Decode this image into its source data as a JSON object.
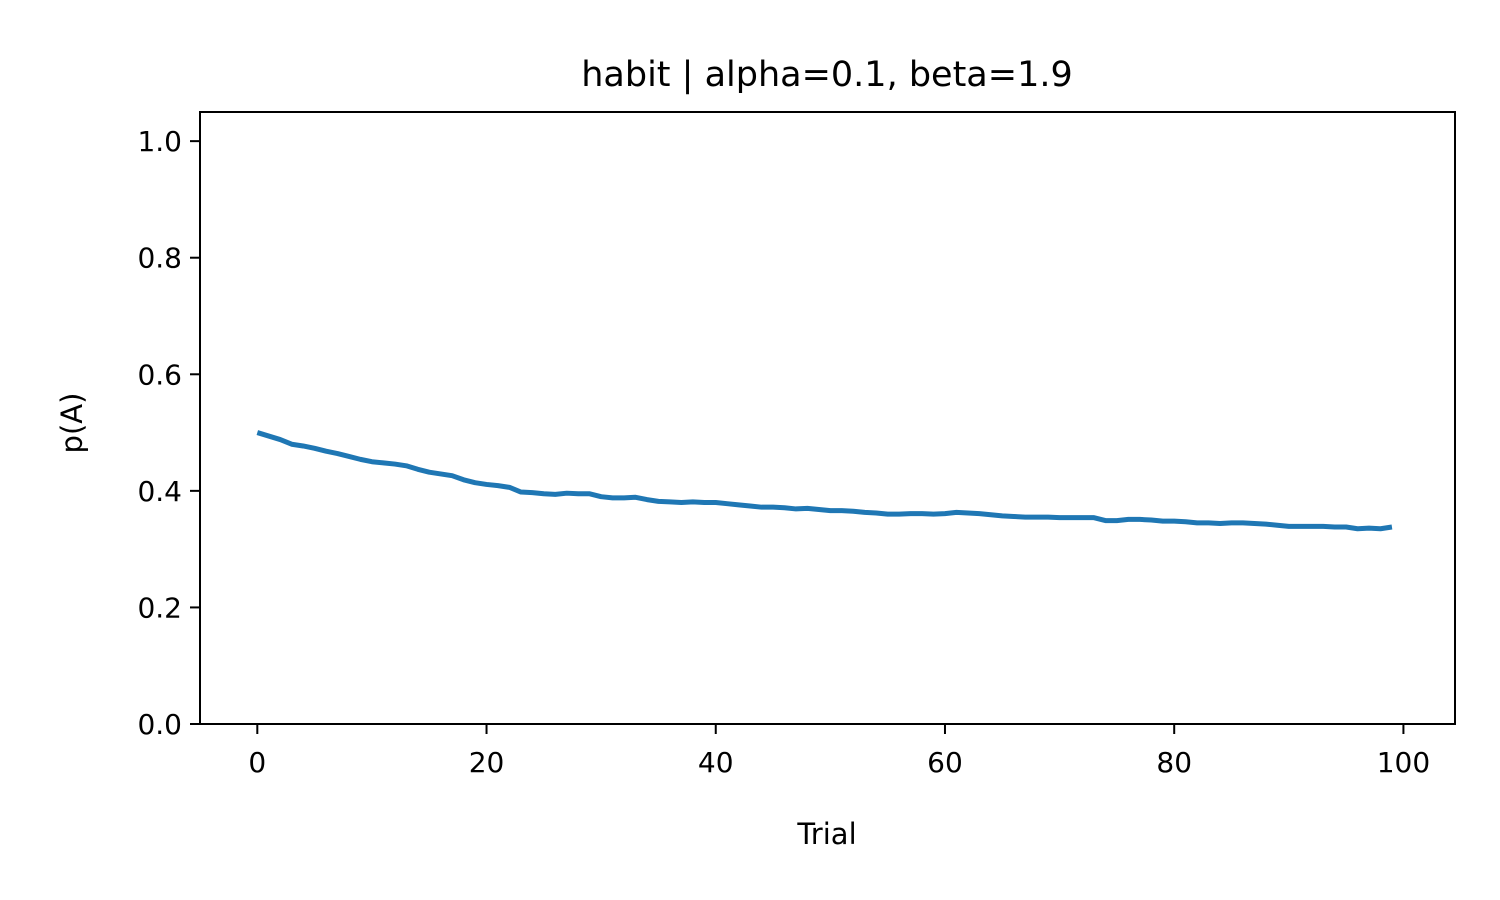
{
  "chart_data": {
    "type": "line",
    "title": "habit | alpha=0.1, beta=1.9",
    "xlabel": "Trial",
    "ylabel": "p(A)",
    "xlim": [
      -5,
      104.5
    ],
    "ylim": [
      0,
      1.05
    ],
    "xticks": [
      0,
      20,
      40,
      60,
      80,
      100
    ],
    "yticks": [
      0.0,
      0.2,
      0.4,
      0.6,
      0.8,
      1.0
    ],
    "xtick_labels": [
      "0",
      "20",
      "40",
      "60",
      "80",
      "100"
    ],
    "ytick_labels": [
      "0.0",
      "0.2",
      "0.4",
      "0.6",
      "0.8",
      "1.0"
    ],
    "grid": false,
    "series": [
      {
        "color": "#1f77b4",
        "x": [
          0,
          1,
          2,
          3,
          4,
          5,
          6,
          7,
          8,
          9,
          10,
          11,
          12,
          13,
          14,
          15,
          16,
          17,
          18,
          19,
          20,
          21,
          22,
          23,
          24,
          25,
          26,
          27,
          28,
          29,
          30,
          31,
          32,
          33,
          34,
          35,
          36,
          37,
          38,
          39,
          40,
          41,
          42,
          43,
          44,
          45,
          46,
          47,
          48,
          49,
          50,
          51,
          52,
          53,
          54,
          55,
          56,
          57,
          58,
          59,
          60,
          61,
          62,
          63,
          64,
          65,
          66,
          67,
          68,
          69,
          70,
          71,
          72,
          73,
          74,
          75,
          76,
          77,
          78,
          79,
          80,
          81,
          82,
          83,
          84,
          85,
          86,
          87,
          88,
          89,
          90,
          91,
          92,
          93,
          94,
          95,
          96,
          97,
          98,
          99
        ],
        "y": [
          0.5,
          0.494,
          0.488,
          0.48,
          0.477,
          0.473,
          0.468,
          0.464,
          0.459,
          0.454,
          0.45,
          0.448,
          0.446,
          0.443,
          0.437,
          0.432,
          0.429,
          0.426,
          0.419,
          0.414,
          0.411,
          0.409,
          0.406,
          0.398,
          0.397,
          0.395,
          0.394,
          0.396,
          0.395,
          0.395,
          0.39,
          0.388,
          0.388,
          0.389,
          0.385,
          0.382,
          0.381,
          0.38,
          0.381,
          0.38,
          0.38,
          0.378,
          0.376,
          0.374,
          0.372,
          0.372,
          0.371,
          0.369,
          0.37,
          0.368,
          0.366,
          0.366,
          0.365,
          0.363,
          0.362,
          0.36,
          0.36,
          0.361,
          0.361,
          0.36,
          0.361,
          0.363,
          0.362,
          0.361,
          0.359,
          0.357,
          0.356,
          0.355,
          0.355,
          0.355,
          0.354,
          0.354,
          0.354,
          0.354,
          0.349,
          0.349,
          0.351,
          0.351,
          0.35,
          0.348,
          0.348,
          0.347,
          0.345,
          0.345,
          0.344,
          0.345,
          0.345,
          0.344,
          0.343,
          0.341,
          0.339,
          0.339,
          0.339,
          0.339,
          0.338,
          0.338,
          0.335,
          0.336,
          0.335,
          0.338
        ]
      }
    ]
  }
}
